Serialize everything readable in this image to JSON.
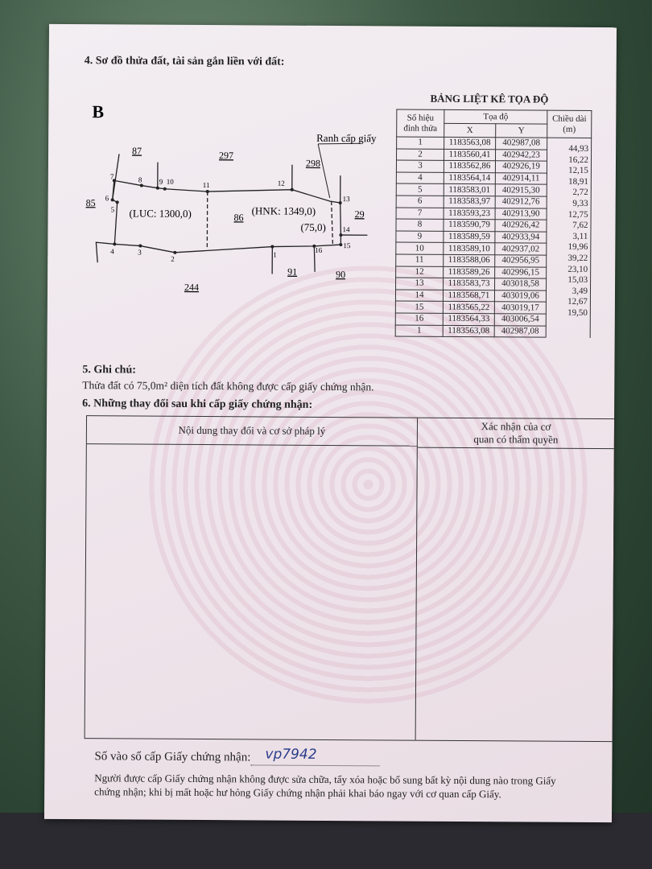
{
  "section4": {
    "title": "4. Sơ đồ thửa đất, tài sản gắn liền với đất:"
  },
  "diagram": {
    "north_symbol": "B",
    "boundary_label": "Ranh cấp giấy",
    "parcel_main": "86",
    "luc_label": "(LUC: 1300,0)",
    "hnk_label": "(HNK: 1349,0)",
    "excluded_area_label": "(75,0)",
    "neighbors": [
      "87",
      "297",
      "298",
      "85",
      "29",
      "91",
      "90",
      "244"
    ],
    "points": [
      "1",
      "2",
      "3",
      "4",
      "5",
      "6",
      "7",
      "8",
      "9",
      "10",
      "11",
      "12",
      "13",
      "14",
      "15",
      "16"
    ]
  },
  "coord_table": {
    "title": "BẢNG LIỆT KÊ TỌA ĐỘ",
    "col_point": "Số hiệu đỉnh thửa",
    "col_coord": "Tọa độ",
    "col_x": "X",
    "col_y": "Y",
    "col_length": "Chiều dài (m)",
    "rows": [
      {
        "p": "1",
        "x": "1183563,08",
        "y": "402987,08"
      },
      {
        "p": "2",
        "x": "1183560,41",
        "y": "402942,23"
      },
      {
        "p": "3",
        "x": "1183562,86",
        "y": "402926,19"
      },
      {
        "p": "4",
        "x": "1183564,14",
        "y": "402914,11"
      },
      {
        "p": "5",
        "x": "1183583,01",
        "y": "402915,30"
      },
      {
        "p": "6",
        "x": "1183583,97",
        "y": "402912,76"
      },
      {
        "p": "7",
        "x": "1183593,23",
        "y": "402913,90"
      },
      {
        "p": "8",
        "x": "1183590,79",
        "y": "402926,42"
      },
      {
        "p": "9",
        "x": "1183589,59",
        "y": "402933,94"
      },
      {
        "p": "10",
        "x": "1183589,10",
        "y": "402937,02"
      },
      {
        "p": "11",
        "x": "1183588,06",
        "y": "402956,95"
      },
      {
        "p": "12",
        "x": "1183589,26",
        "y": "402996,15"
      },
      {
        "p": "13",
        "x": "1183583,73",
        "y": "403018,58"
      },
      {
        "p": "14",
        "x": "1183568,71",
        "y": "403019,06"
      },
      {
        "p": "15",
        "x": "1183565,22",
        "y": "403019,17"
      },
      {
        "p": "16",
        "x": "1183564,33",
        "y": "403006,54"
      },
      {
        "p": "1",
        "x": "1183563,08",
        "y": "402987,08"
      }
    ],
    "lengths": [
      "44,93",
      "16,22",
      "12,15",
      "18,91",
      "2,72",
      "9,33",
      "12,75",
      "7,62",
      "3,11",
      "19,96",
      "39,22",
      "23,10",
      "15,03",
      "3,49",
      "12,67",
      "19,50"
    ]
  },
  "section5": {
    "title": "5. Ghi chú:",
    "text": "Thửa đất có 75,0m² diện tích đất không được cấp giấy chứng nhận."
  },
  "section6": {
    "title": "6. Những thay đổi sau khi cấp giấy chứng nhận:",
    "col1": "Nội dung thay đổi và cơ sở pháp lý",
    "col2_line1": "Xác nhận của cơ",
    "col2_line2": "quan có thẩm quyền"
  },
  "footer": {
    "register_label": "Số vào sổ cấp Giấy chứng nhận:",
    "register_value": "vp7942",
    "notice": "Người được cấp Giấy chứng nhận không được sửa chữa, tẩy xóa hoặc bổ sung bất kỳ nội dung nào trong Giấy chứng nhận; khi bị mất hoặc hư hỏng Giấy chứng nhận phải khai báo ngay với cơ quan cấp Giấy."
  }
}
